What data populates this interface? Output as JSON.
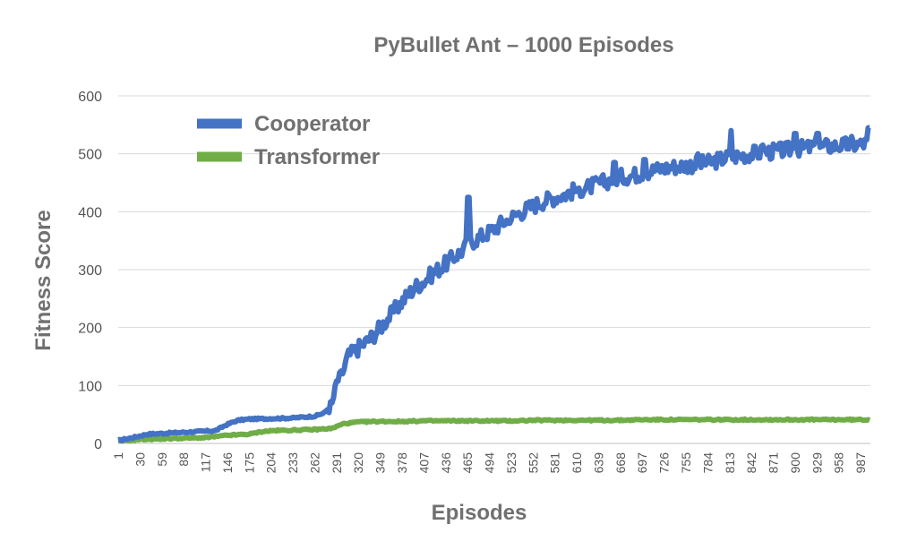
{
  "chart_data": {
    "type": "line",
    "title": "PyBullet Ant – 1000 Episodes",
    "xlabel": "Episodes",
    "ylabel": "Fitness Score",
    "xlim": [
      1,
      1000
    ],
    "ylim": [
      0,
      600
    ],
    "yticks": [
      "0",
      "100",
      "200",
      "300",
      "400",
      "500",
      "600"
    ],
    "xtick_labels": [
      "1",
      "30",
      "59",
      "88",
      "117",
      "146",
      "175",
      "204",
      "233",
      "262",
      "291",
      "320",
      "349",
      "378",
      "407",
      "436",
      "465",
      "494",
      "523",
      "552",
      "581",
      "610",
      "639",
      "668",
      "697",
      "726",
      "755",
      "784",
      "813",
      "842",
      "871",
      "900",
      "929",
      "958",
      "987"
    ],
    "grid": "horizontal",
    "legend": "top-left",
    "colors": {
      "cooperator": "#4472c4",
      "transformer": "#70ad47"
    },
    "series": [
      {
        "name": "Cooperator",
        "points": [
          [
            1,
            5
          ],
          [
            20,
            10
          ],
          [
            40,
            16
          ],
          [
            70,
            18
          ],
          [
            100,
            20
          ],
          [
            130,
            22
          ],
          [
            146,
            33
          ],
          [
            160,
            40
          ],
          [
            175,
            42
          ],
          [
            204,
            43
          ],
          [
            233,
            44
          ],
          [
            262,
            47
          ],
          [
            275,
            53
          ],
          [
            285,
            68
          ],
          [
            291,
            105
          ],
          [
            300,
            125
          ],
          [
            306,
            150
          ],
          [
            320,
            165
          ],
          [
            335,
            180
          ],
          [
            349,
            200
          ],
          [
            365,
            225
          ],
          [
            378,
            245
          ],
          [
            395,
            270
          ],
          [
            407,
            280
          ],
          [
            420,
            295
          ],
          [
            436,
            310
          ],
          [
            450,
            325
          ],
          [
            460,
            335
          ],
          [
            465,
            345
          ],
          [
            480,
            355
          ],
          [
            494,
            365
          ],
          [
            510,
            380
          ],
          [
            523,
            390
          ],
          [
            540,
            402
          ],
          [
            552,
            410
          ],
          [
            565,
            418
          ],
          [
            581,
            425
          ],
          [
            595,
            430
          ],
          [
            610,
            438
          ],
          [
            625,
            442
          ],
          [
            639,
            448
          ],
          [
            655,
            455
          ],
          [
            668,
            460
          ],
          [
            685,
            463
          ],
          [
            697,
            467
          ],
          [
            712,
            472
          ],
          [
            726,
            475
          ],
          [
            740,
            478
          ],
          [
            755,
            480
          ],
          [
            770,
            482
          ],
          [
            784,
            484
          ],
          [
            800,
            490
          ],
          [
            813,
            495
          ],
          [
            828,
            497
          ],
          [
            842,
            500
          ],
          [
            857,
            502
          ],
          [
            871,
            504
          ],
          [
            886,
            506
          ],
          [
            900,
            508
          ],
          [
            915,
            510
          ],
          [
            929,
            512
          ],
          [
            944,
            513
          ],
          [
            958,
            514
          ],
          [
            972,
            515
          ],
          [
            987,
            516
          ],
          [
            1000,
            520
          ]
        ],
        "spikes": [
          [
            466,
            425
          ],
          [
            520,
            380
          ],
          [
            553,
            415
          ],
          [
            611,
            440
          ],
          [
            660,
            485
          ],
          [
            700,
            490
          ],
          [
            771,
            500
          ],
          [
            815,
            540
          ],
          [
            857,
            515
          ],
          [
            900,
            535
          ],
          [
            930,
            535
          ],
          [
            975,
            530
          ],
          [
            998,
            545
          ]
        ]
      },
      {
        "name": "Transformer",
        "points": [
          [
            1,
            4
          ],
          [
            30,
            7
          ],
          [
            59,
            8
          ],
          [
            88,
            9
          ],
          [
            117,
            10
          ],
          [
            146,
            14
          ],
          [
            175,
            16
          ],
          [
            190,
            20
          ],
          [
            204,
            22
          ],
          [
            233,
            23
          ],
          [
            262,
            24
          ],
          [
            285,
            26
          ],
          [
            300,
            34
          ],
          [
            320,
            37
          ],
          [
            349,
            38
          ],
          [
            378,
            38
          ],
          [
            407,
            39
          ],
          [
            436,
            39
          ],
          [
            465,
            39
          ],
          [
            494,
            39
          ],
          [
            523,
            39
          ],
          [
            552,
            40
          ],
          [
            581,
            40
          ],
          [
            610,
            40
          ],
          [
            639,
            40
          ],
          [
            668,
            40
          ],
          [
            697,
            41
          ],
          [
            726,
            41
          ],
          [
            755,
            41
          ],
          [
            784,
            41
          ],
          [
            813,
            41
          ],
          [
            842,
            41
          ],
          [
            871,
            41
          ],
          [
            900,
            41
          ],
          [
            929,
            41
          ],
          [
            958,
            41
          ],
          [
            987,
            41
          ],
          [
            1000,
            41
          ]
        ]
      }
    ]
  }
}
